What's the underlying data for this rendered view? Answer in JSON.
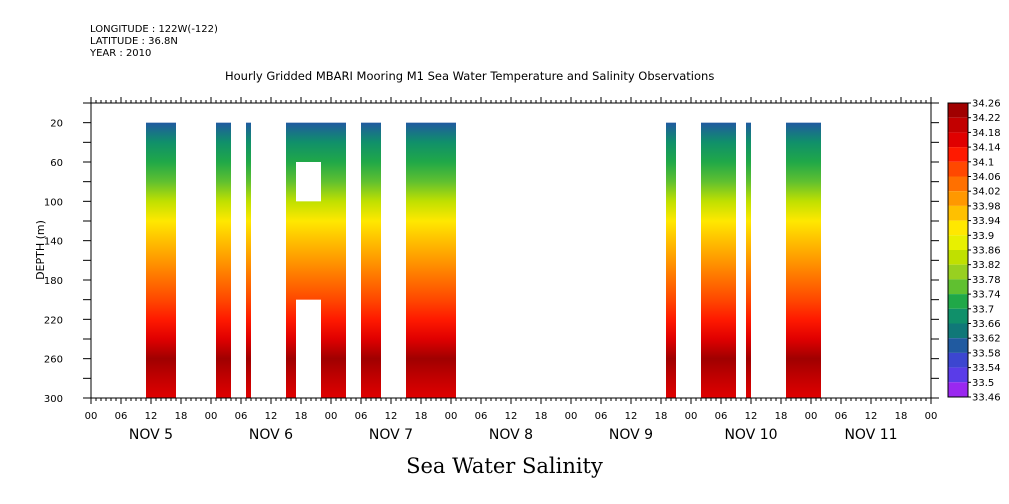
{
  "header": {
    "longitude": "LONGITUDE : 122W(-122)",
    "latitude": "LATITUDE : 36.8N",
    "year": "YEAR : 2010"
  },
  "chart_data": {
    "type": "heatmap",
    "title": "Hourly Gridded MBARI Mooring M1 Sea Water Temperature and Salinity Observations",
    "xlabel": "Sea Water Salinity",
    "ylabel": "DEPTH (m)",
    "y_range": [
      300,
      0
    ],
    "y_ticks": [
      20,
      60,
      100,
      140,
      180,
      220,
      260,
      300
    ],
    "x_range_hours": [
      0,
      168
    ],
    "x_hour_ticks": [
      "00",
      "06",
      "12",
      "18",
      "00",
      "06",
      "12",
      "18",
      "00",
      "06",
      "12",
      "18",
      "00",
      "06",
      "12",
      "18",
      "00",
      "06",
      "12",
      "18",
      "00",
      "06",
      "12",
      "18",
      "00",
      "06",
      "12",
      "18",
      "00"
    ],
    "x_day_labels": [
      "NOV 5",
      "NOV 6",
      "NOV 7",
      "NOV 8",
      "NOV 9",
      "NOV 10",
      "NOV 11"
    ],
    "colorbar_levels": [
      "34.26",
      "34.22",
      "34.18",
      "34.14",
      "34.1",
      "34.06",
      "34.02",
      "33.98",
      "33.94",
      "33.9",
      "33.86",
      "33.82",
      "33.78",
      "33.74",
      "33.7",
      "33.66",
      "33.62",
      "33.58",
      "33.54",
      "33.5",
      "33.46"
    ],
    "colorbar_colors": [
      "#a00000",
      "#c20000",
      "#e00000",
      "#ff1a00",
      "#ff4800",
      "#ff7000",
      "#ff9800",
      "#ffc000",
      "#ffe800",
      "#e8f000",
      "#c0e000",
      "#98d020",
      "#60c030",
      "#20a848",
      "#10906a",
      "#107878",
      "#205aa0",
      "#3c46d0",
      "#5a3ce8",
      "#9a28f0",
      "#e000f0"
    ],
    "profile_depths_m": [
      20,
      40,
      60,
      80,
      100,
      120,
      140,
      160,
      180,
      200,
      220,
      240,
      260,
      280,
      300
    ],
    "profile_values": [
      33.6,
      33.68,
      33.74,
      33.8,
      33.86,
      33.92,
      33.98,
      34.02,
      34.06,
      34.1,
      34.14,
      34.18,
      34.24,
      34.22,
      34.18
    ],
    "data_segments_hours": [
      {
        "start": 11,
        "end": 17
      },
      {
        "start": 25,
        "end": 28
      },
      {
        "start": 31,
        "end": 32
      },
      {
        "start": 39,
        "end": 51
      },
      {
        "start": 54,
        "end": 58
      },
      {
        "start": 63,
        "end": 73
      },
      {
        "start": 115,
        "end": 117
      },
      {
        "start": 122,
        "end": 129
      },
      {
        "start": 131,
        "end": 132
      },
      {
        "start": 139,
        "end": 146
      }
    ],
    "missing_blocks": [
      {
        "start_hour": 41,
        "end_hour": 46,
        "top_m": 60,
        "bottom_m": 100
      },
      {
        "start_hour": 41,
        "end_hour": 46,
        "top_m": 200,
        "bottom_m": 300
      }
    ],
    "grid": false,
    "legend": "colorbar-right"
  }
}
